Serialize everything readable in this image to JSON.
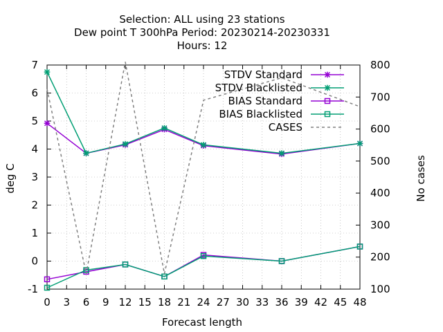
{
  "chart_data": {
    "type": "line",
    "title_lines": [
      "Selection: ALL using    23 stations",
      "Dew point T 300hPa   Period: 20230214-20230331",
      "Hours:  12"
    ],
    "xlabel": "Forecast length",
    "ylabel": "deg C",
    "y2label": "No cases",
    "xlim": [
      0,
      48
    ],
    "ylim": [
      -1,
      7
    ],
    "y2lim": [
      100,
      800
    ],
    "x_ticks": [
      0,
      3,
      6,
      9,
      12,
      15,
      18,
      21,
      24,
      27,
      30,
      33,
      36,
      39,
      42,
      45,
      48
    ],
    "y_ticks": [
      -1,
      0,
      1,
      2,
      3,
      4,
      5,
      6,
      7
    ],
    "y2_ticks": [
      100,
      200,
      300,
      400,
      500,
      600,
      700,
      800
    ],
    "grid": true,
    "legend_position": "top-right",
    "series": [
      {
        "name": "STDV Standard",
        "axis": "y",
        "color": "#9400d3",
        "marker": "star",
        "dash": false,
        "x": [
          0,
          6,
          12,
          18,
          24,
          36,
          48
        ],
        "y": [
          4.92,
          3.85,
          4.15,
          4.7,
          4.12,
          3.82,
          4.2
        ]
      },
      {
        "name": "STDV Blacklisted",
        "axis": "y",
        "color": "#009e73",
        "marker": "star",
        "dash": false,
        "x": [
          0,
          6,
          12,
          18,
          24,
          36,
          48
        ],
        "y": [
          6.75,
          3.85,
          4.18,
          4.75,
          4.15,
          3.85,
          4.2
        ]
      },
      {
        "name": "BIAS Standard",
        "axis": "y",
        "color": "#9400d3",
        "marker": "square",
        "dash": false,
        "x": [
          0,
          6,
          12,
          18,
          24,
          36,
          48
        ],
        "y": [
          -0.65,
          -0.38,
          -0.12,
          -0.55,
          0.22,
          0.0,
          0.52
        ]
      },
      {
        "name": "BIAS Blacklisted",
        "axis": "y",
        "color": "#009e73",
        "marker": "square",
        "dash": false,
        "x": [
          0,
          6,
          12,
          18,
          24,
          36,
          48
        ],
        "y": [
          -0.95,
          -0.32,
          -0.12,
          -0.55,
          0.18,
          0.0,
          0.52
        ]
      },
      {
        "name": "CASES",
        "axis": "y2",
        "color": "#808080",
        "marker": "none",
        "dash": true,
        "x": [
          0,
          6,
          12,
          18,
          24,
          36,
          48
        ],
        "y": [
          725,
          148,
          810,
          148,
          690,
          760,
          670
        ]
      }
    ]
  }
}
